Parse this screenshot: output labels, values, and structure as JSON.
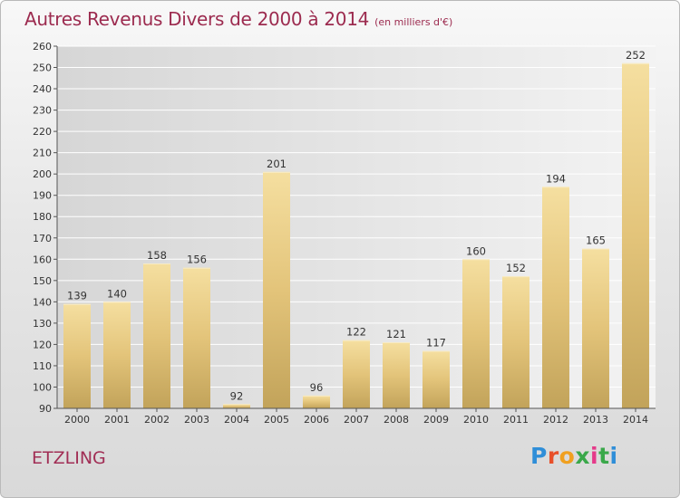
{
  "title": "Autres Revenus Divers de 2000 à 2014",
  "unit": "(en milliers d'€)",
  "commune": "ETZLING",
  "logo": "Proxiti",
  "chart_data": {
    "type": "bar",
    "title": "Autres Revenus Divers de 2000 à 2014",
    "subtitle": "(en milliers d'€)",
    "categories": [
      "2000",
      "2001",
      "2002",
      "2003",
      "2004",
      "2005",
      "2006",
      "2007",
      "2008",
      "2009",
      "2010",
      "2011",
      "2012",
      "2013",
      "2014"
    ],
    "values": [
      139,
      140,
      158,
      156,
      92,
      201,
      96,
      122,
      121,
      117,
      160,
      152,
      194,
      165,
      252
    ],
    "ylim": [
      90,
      260
    ],
    "yticks": [
      90,
      100,
      110,
      120,
      130,
      140,
      150,
      160,
      170,
      180,
      190,
      200,
      210,
      220,
      230,
      240,
      250,
      260
    ],
    "grid": true,
    "bar_color": "#e8cc85"
  }
}
